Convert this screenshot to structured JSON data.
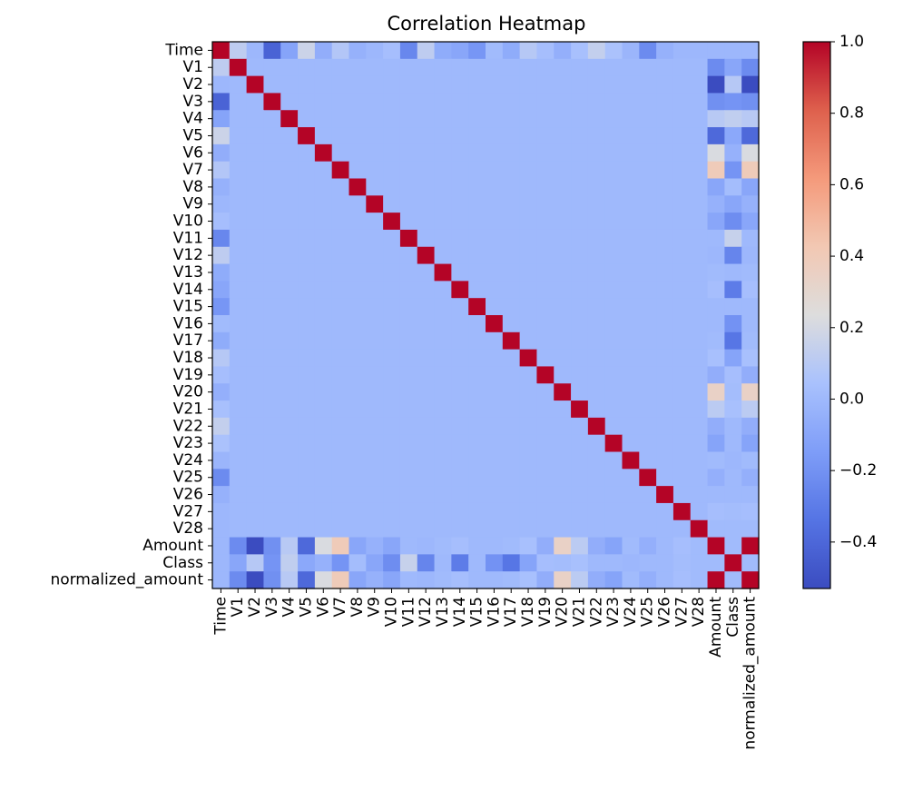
{
  "chart_data": {
    "type": "heatmap",
    "title": "Correlation Heatmap",
    "xlabel": "",
    "ylabel": "",
    "labels": [
      "Time",
      "V1",
      "V2",
      "V3",
      "V4",
      "V5",
      "V6",
      "V7",
      "V8",
      "V9",
      "V10",
      "V11",
      "V12",
      "V13",
      "V14",
      "V15",
      "V16",
      "V17",
      "V18",
      "V19",
      "V20",
      "V21",
      "V22",
      "V23",
      "V24",
      "V25",
      "V26",
      "V27",
      "V28",
      "Amount",
      "Class",
      "normalized_amount"
    ],
    "colormap": "coolwarm",
    "vmin": -0.53,
    "vmax": 1.0,
    "colorbar_ticks": [
      1.0,
      0.8,
      0.6,
      0.4,
      0.2,
      0.0,
      -0.2,
      -0.4
    ],
    "colorbar_tick_labels": [
      "1.0",
      "0.8",
      "0.6",
      "0.4",
      "0.2",
      "0.0",
      "−0.2",
      "−0.4"
    ],
    "time_correlations": [
      1.0,
      0.12,
      -0.01,
      -0.42,
      -0.11,
      0.17,
      -0.06,
      0.08,
      -0.04,
      -0.01,
      0.03,
      -0.25,
      0.12,
      -0.07,
      -0.1,
      -0.18,
      0.01,
      -0.07,
      0.09,
      0.03,
      -0.05,
      0.04,
      0.14,
      0.05,
      -0.02,
      -0.23,
      -0.04,
      -0.01,
      -0.01,
      -0.01,
      -0.01,
      -0.01
    ],
    "amount_correlations": [
      -0.01,
      -0.23,
      -0.53,
      -0.21,
      0.1,
      -0.39,
      0.22,
      0.4,
      -0.1,
      -0.04,
      -0.1,
      0.0,
      -0.01,
      0.01,
      0.03,
      -0.0,
      -0.0,
      0.01,
      0.04,
      -0.06,
      0.34,
      0.11,
      -0.06,
      -0.11,
      0.01,
      -0.05,
      -0.0,
      0.03,
      0.01,
      1.0,
      0.01,
      1.0
    ],
    "class_correlations": [
      -0.01,
      -0.1,
      0.09,
      -0.19,
      0.13,
      -0.09,
      -0.04,
      -0.19,
      0.02,
      -0.1,
      -0.22,
      0.15,
      -0.26,
      -0.0,
      -0.3,
      -0.0,
      -0.2,
      -0.33,
      -0.11,
      0.03,
      0.02,
      0.04,
      0.0,
      -0.0,
      -0.01,
      0.0,
      0.0,
      0.02,
      0.01,
      0.01,
      1.0,
      0.01
    ],
    "other_pairs_value": 0.0
  }
}
